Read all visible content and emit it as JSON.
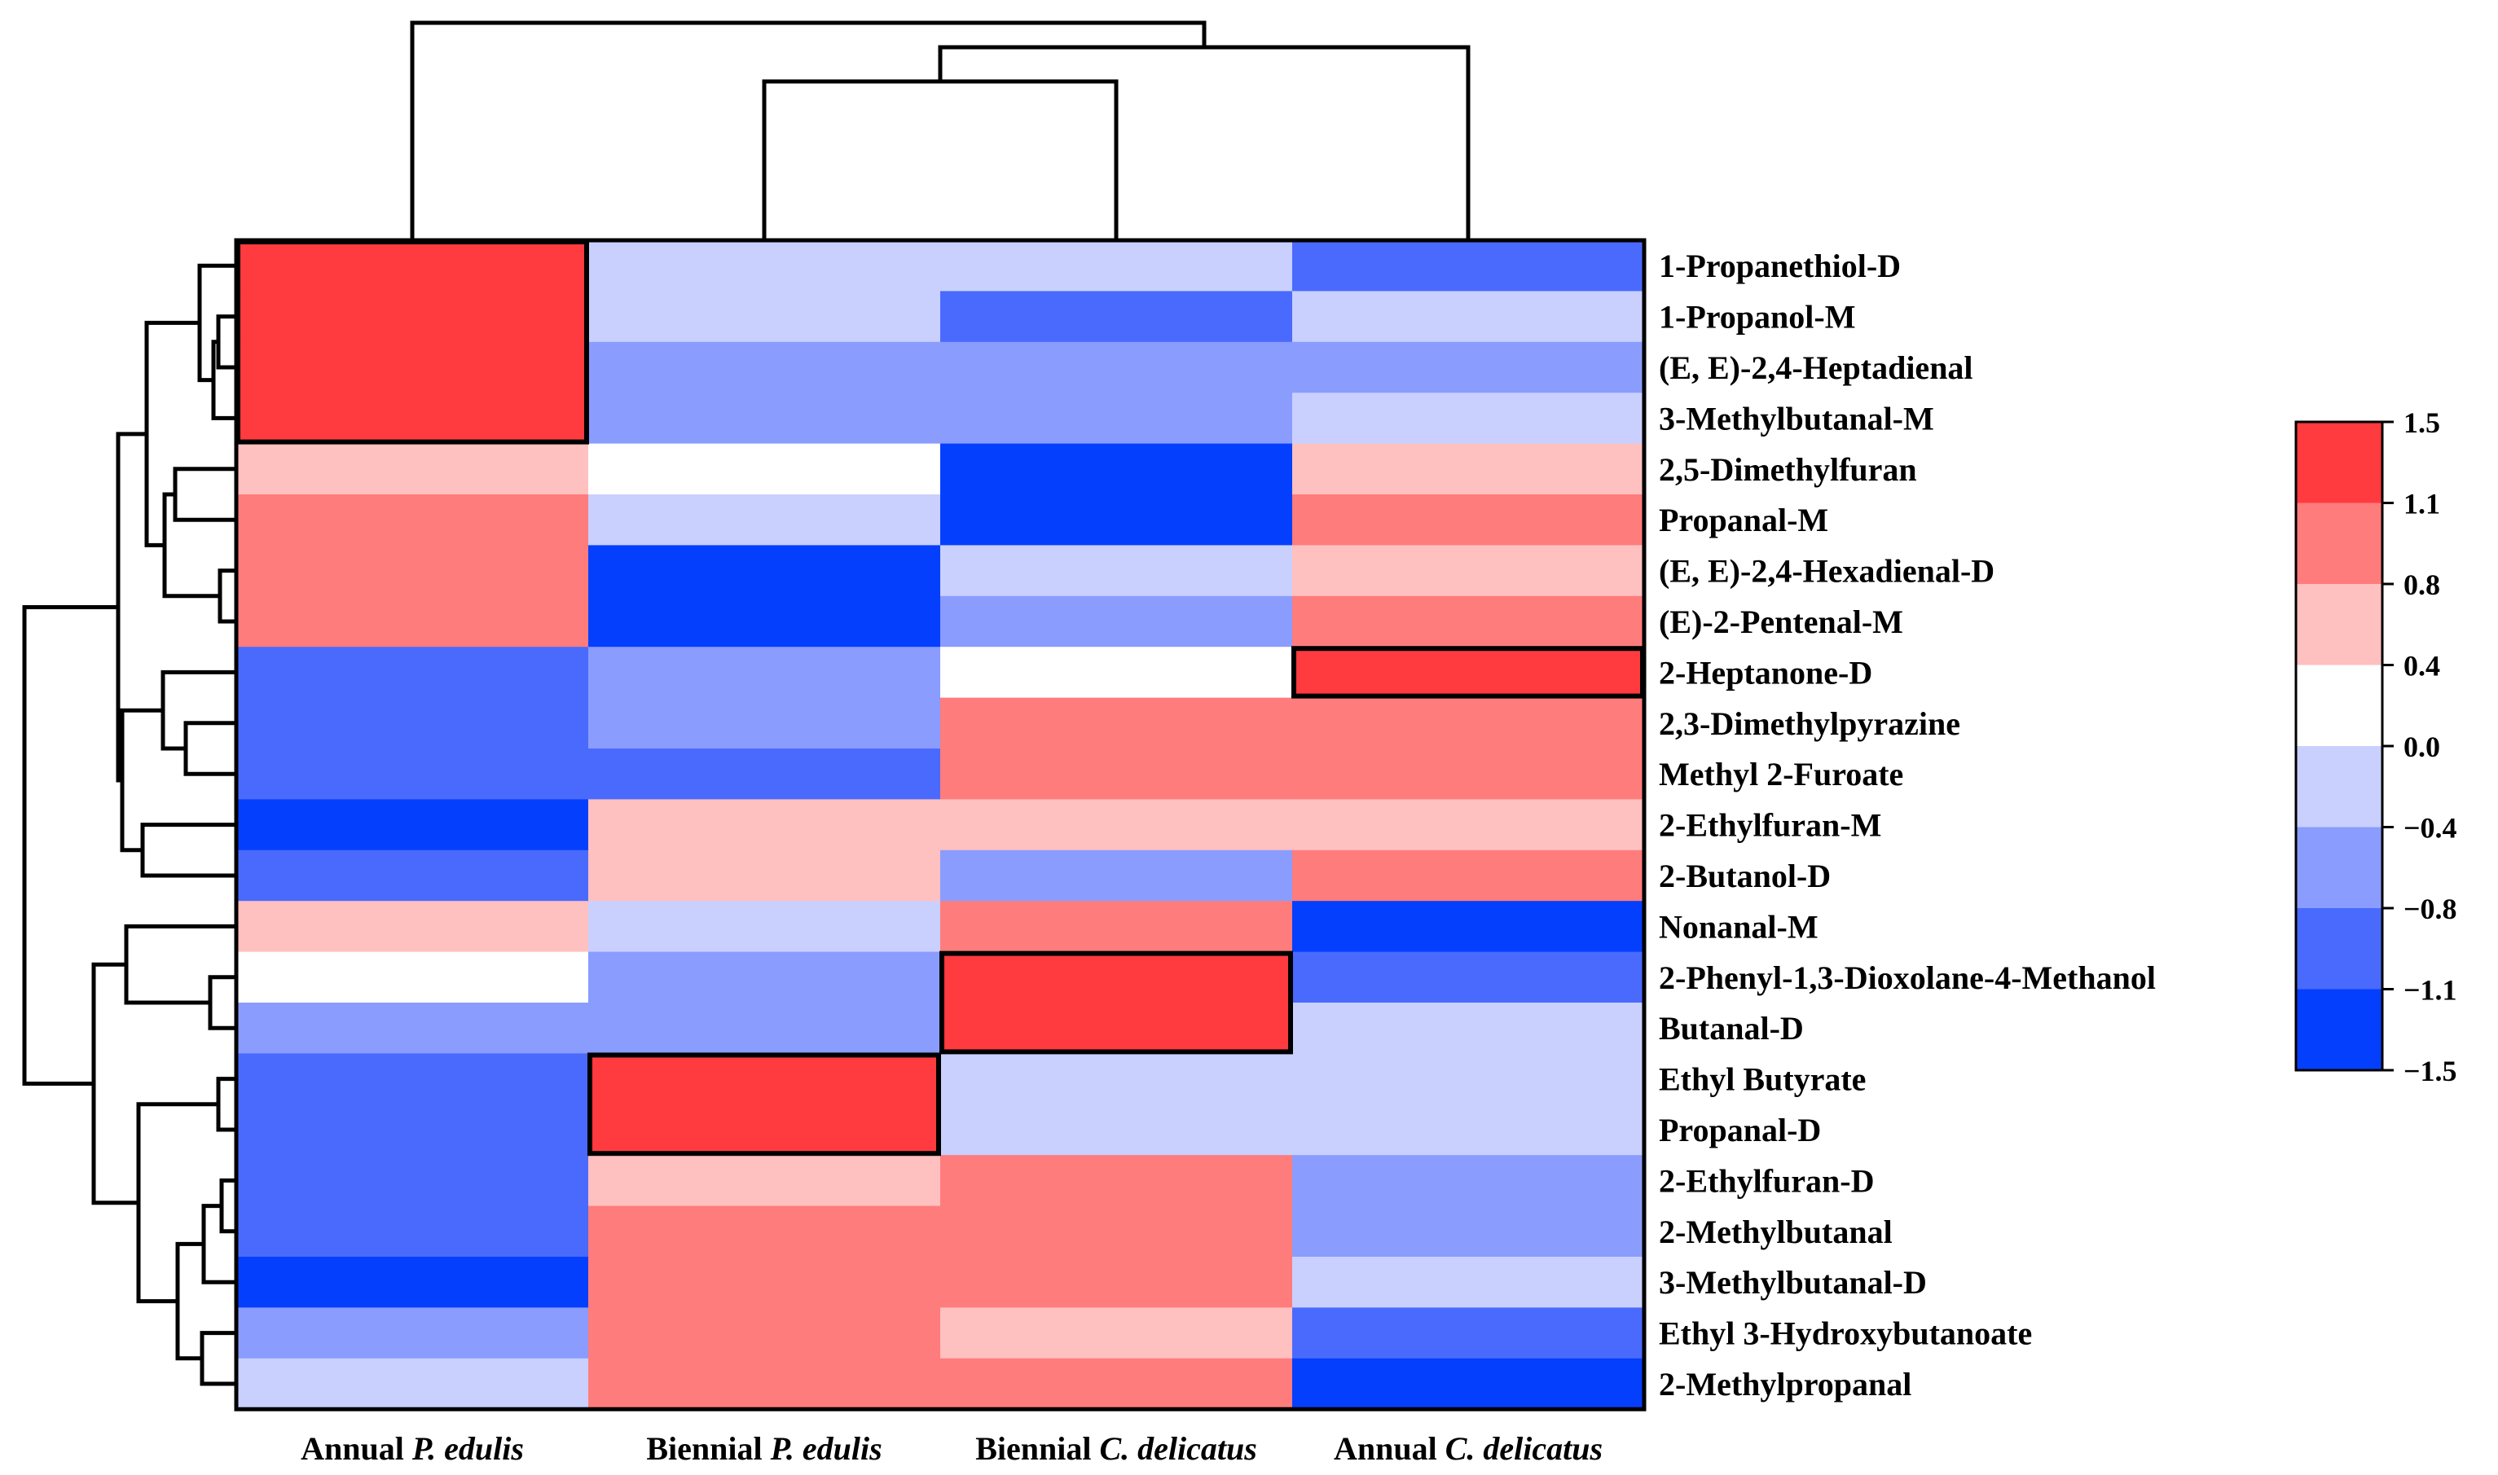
{
  "chart_data": {
    "type": "heatmap",
    "title": "",
    "columns": [
      {
        "prefix": "Annual ",
        "species": "P. edulis"
      },
      {
        "prefix": "Biennial ",
        "species": "P. edulis"
      },
      {
        "prefix": "Biennial ",
        "species": "C. delicatus"
      },
      {
        "prefix": "Annual ",
        "species": "C. delicatus"
      }
    ],
    "rows": [
      "1-Propanethiol-D",
      "1-Propanol-M",
      "(E, E)-2,4-Heptadienal",
      "3-Methylbutanal-M",
      "2,5-Dimethylfuran",
      "Propanal-M",
      "(E, E)-2,4-Hexadienal-D",
      "(E)-2-Pentenal-M",
      "2-Heptanone-D",
      "2,3-Dimethylpyrazine",
      "Methyl 2-Furoate",
      "2-Ethylfuran-M",
      "2-Butanol-D",
      "Nonanal-M",
      "2-Phenyl-1,3-Dioxolane-4-Methanol",
      "Butanal-D",
      "Ethyl Butyrate",
      "Propanal-D",
      "2-Ethylfuran-D",
      "2-Methylbutanal",
      "3-Methylbutanal-D",
      "Ethyl 3-Hydroxybutanoate",
      "2-Methylpropanal"
    ],
    "values": [
      [
        1.5,
        -0.2,
        -0.2,
        -0.9
      ],
      [
        1.5,
        -0.2,
        -0.9,
        -0.2
      ],
      [
        1.5,
        -0.6,
        -0.6,
        -0.6
      ],
      [
        1.5,
        -0.6,
        -0.6,
        -0.2
      ],
      [
        0.6,
        0.2,
        -1.3,
        0.6
      ],
      [
        1.0,
        -0.2,
        -1.3,
        1.0
      ],
      [
        1.0,
        -1.3,
        -0.2,
        0.6
      ],
      [
        1.0,
        -1.3,
        -0.6,
        1.0
      ],
      [
        -0.9,
        -0.6,
        0.2,
        1.5
      ],
      [
        -0.9,
        -0.6,
        1.0,
        1.0
      ],
      [
        -0.9,
        -0.9,
        1.0,
        1.0
      ],
      [
        -1.3,
        0.6,
        0.6,
        0.6
      ],
      [
        -0.9,
        0.6,
        -0.6,
        1.0
      ],
      [
        0.6,
        -0.2,
        1.0,
        -1.3
      ],
      [
        0.2,
        -0.6,
        1.5,
        -0.9
      ],
      [
        -0.6,
        -0.6,
        1.5,
        -0.2
      ],
      [
        -0.9,
        1.5,
        -0.2,
        -0.2
      ],
      [
        -0.9,
        1.5,
        -0.2,
        -0.2
      ],
      [
        -0.9,
        0.6,
        1.0,
        -0.6
      ],
      [
        -0.9,
        1.0,
        1.0,
        -0.6
      ],
      [
        -1.3,
        1.0,
        1.0,
        -0.2
      ],
      [
        -0.6,
        1.0,
        0.6,
        -0.9
      ],
      [
        -0.2,
        1.0,
        1.0,
        -1.3
      ]
    ],
    "highlighted_blocks": [
      {
        "column": 0,
        "rows": [
          0,
          3
        ]
      },
      {
        "column": 3,
        "rows": [
          8,
          8
        ]
      },
      {
        "column": 2,
        "rows": [
          14,
          15
        ]
      },
      {
        "column": 1,
        "rows": [
          16,
          17
        ]
      }
    ],
    "colorbar": {
      "ticks": [
        "1.5",
        "1.1",
        "0.8",
        "0.4",
        "0.0",
        "−0.4",
        "−0.8",
        "−1.1",
        "−1.5"
      ],
      "colors": [
        "#ff3b3f",
        "#ff7c7c",
        "#ffc0c0",
        "#ffffff",
        "#c9d0fe",
        "#8a9cfe",
        "#4a6afe",
        "#053ffe"
      ],
      "min": -1.5,
      "max": 1.5
    },
    "column_dendrogram": "((Annual P. edulis),((Biennial P. edulis, Biennial C. delicatus), Annual C. delicatus))",
    "row_dendrogram": "hierarchical clustering of the 23 compounds"
  }
}
